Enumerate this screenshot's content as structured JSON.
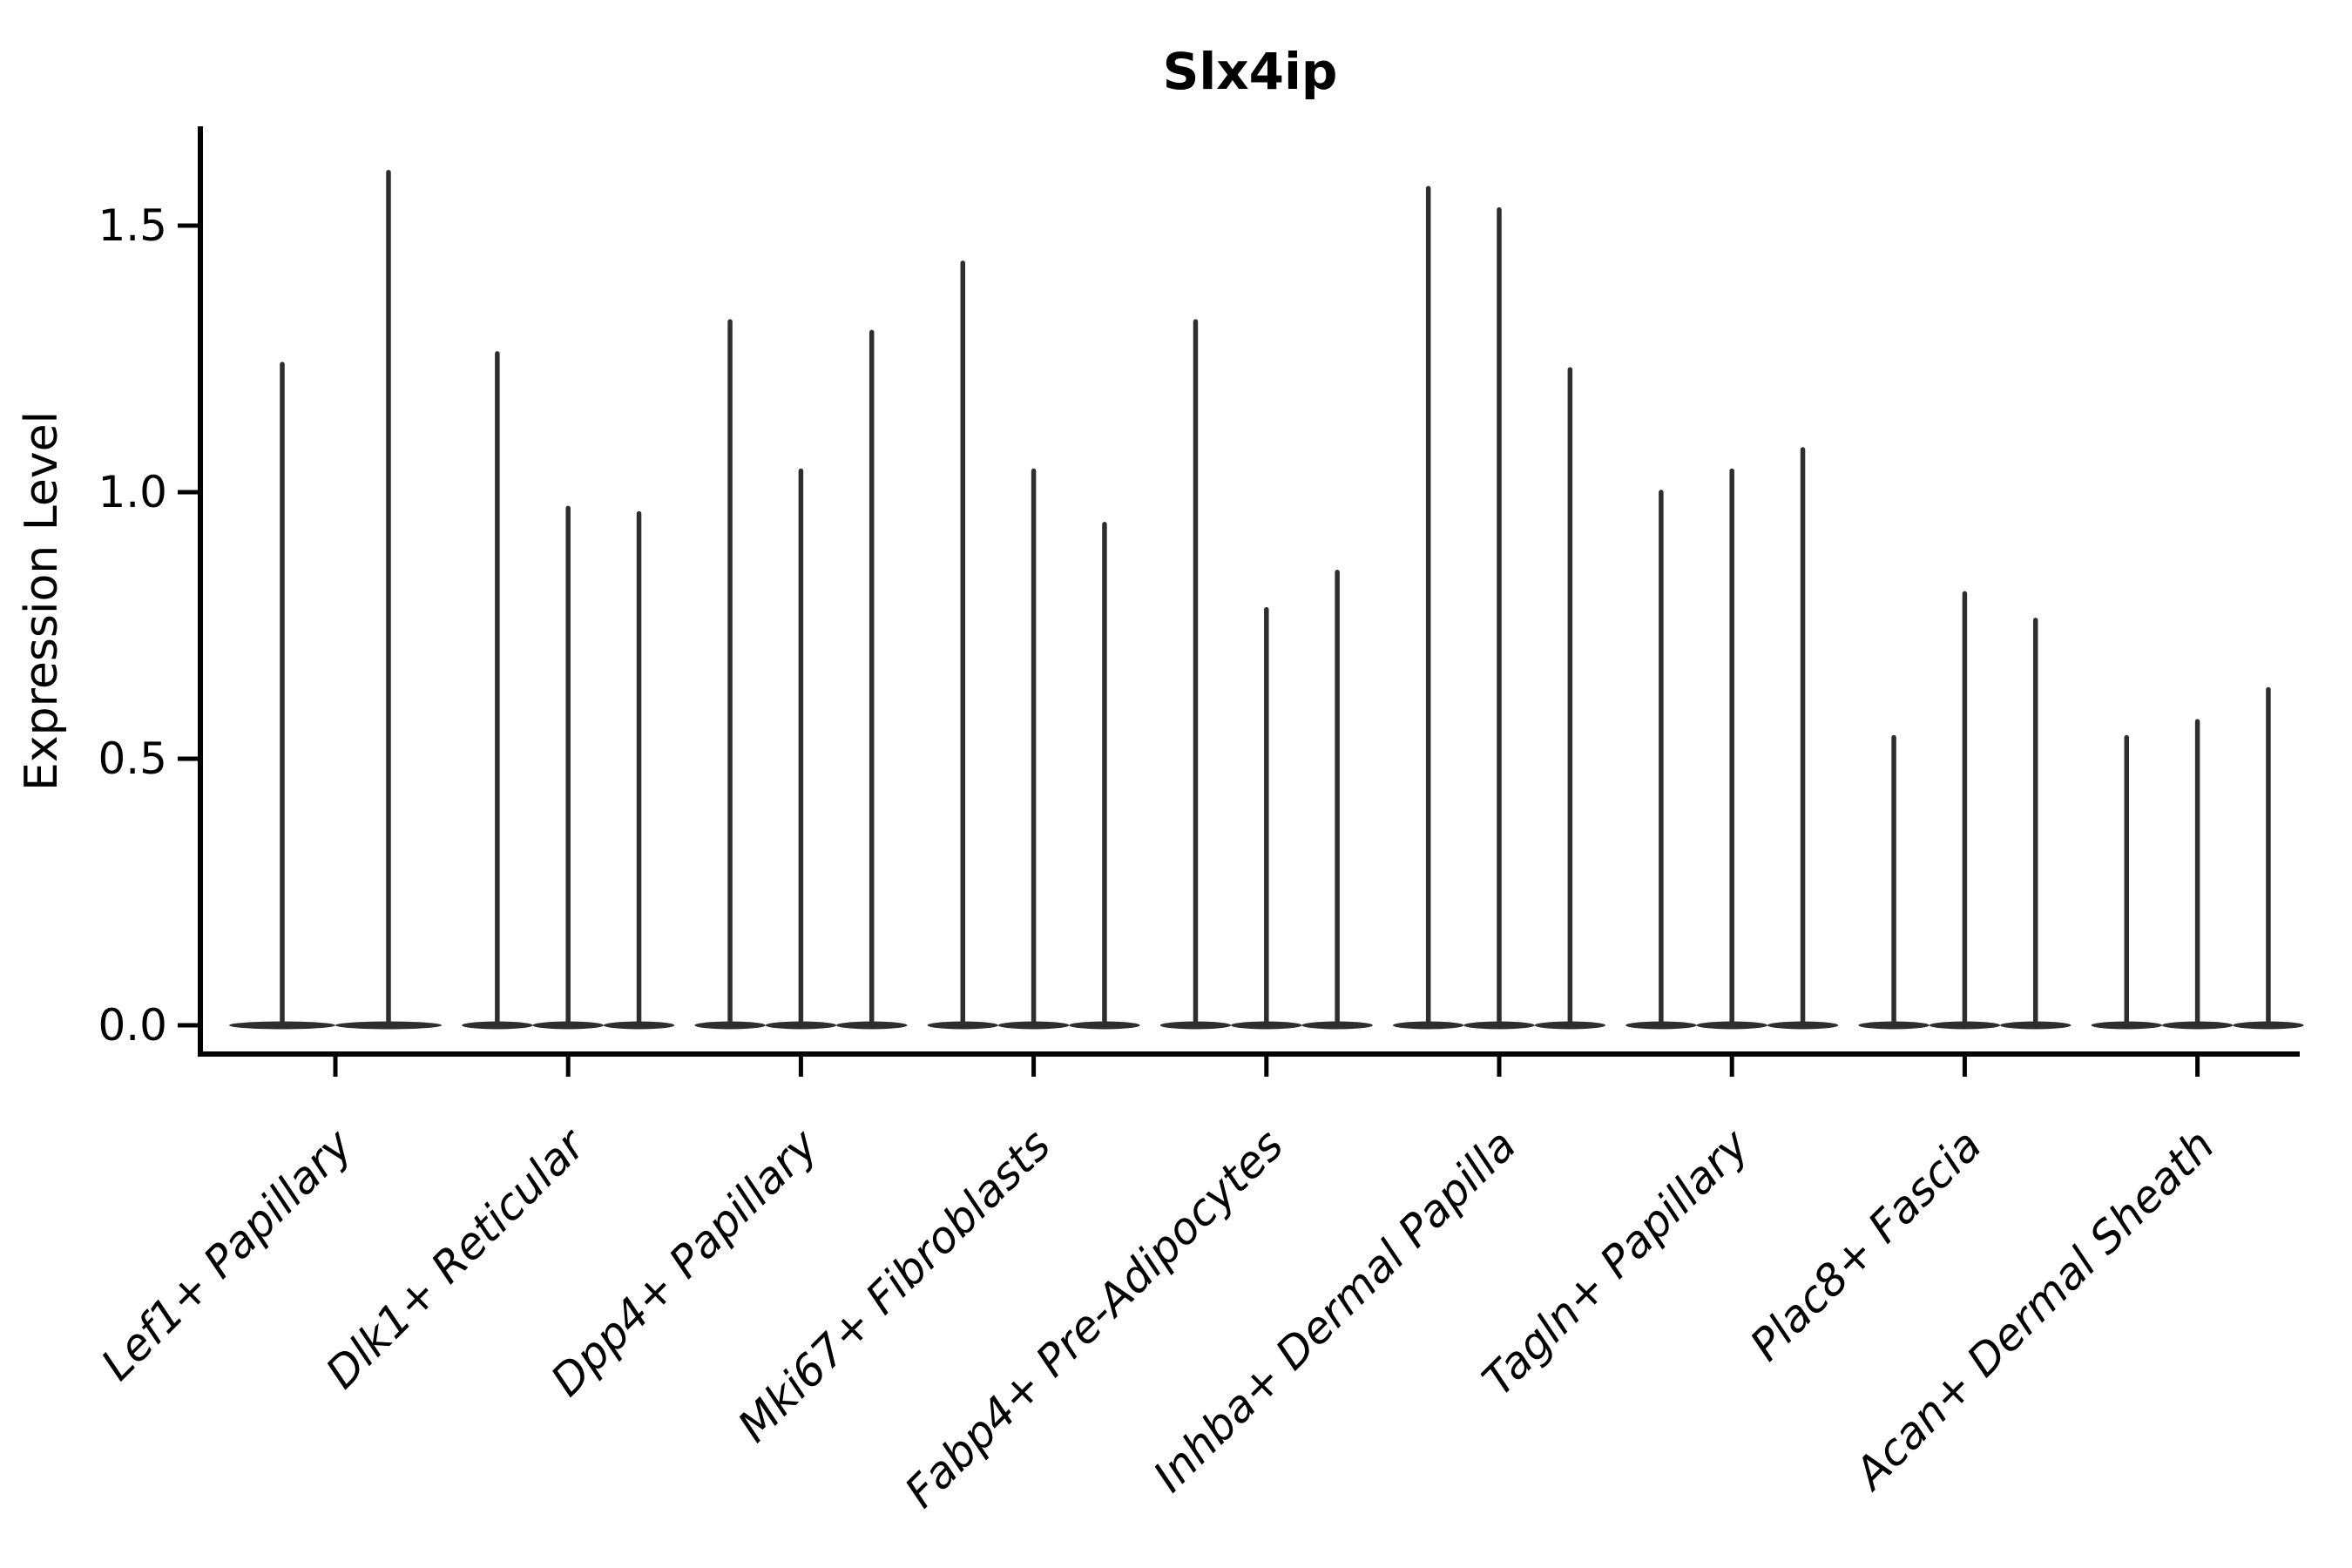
{
  "title": "Slx4ip",
  "y_axis_label": "Expression Level",
  "chart_data": {
    "type": "violin",
    "title": "Slx4ip",
    "xlabel": "",
    "ylabel": "Expression Level",
    "ylim": [
      -0.06,
      1.72
    ],
    "yticks": [
      0.0,
      0.5,
      1.0,
      1.5
    ],
    "ytick_labels": [
      "0.0",
      "0.5",
      "1.0",
      "1.5"
    ],
    "grid": false,
    "legend_position": "none",
    "x_tick_rotation_deg": 45,
    "categories": [
      "Lef1+ Papillary",
      "Dlk1+ Reticular",
      "Dpp4+ Papillary",
      "Mki67+ Fibroblasts",
      "Fabp4+ Pre-Adipocytes",
      "Inhba+ Dermal Papilla",
      "Tagln+ Papillary",
      "Plac8+ Fascia",
      "Acan+ Dermal Sheath"
    ],
    "series": [
      {
        "category": "Lef1+ Papillary",
        "violin_peak_values": [
          1.24,
          1.6
        ],
        "baseline_value": 0.0
      },
      {
        "category": "Dlk1+ Reticular",
        "violin_peak_values": [
          1.26,
          0.97,
          0.96
        ],
        "baseline_value": 0.0
      },
      {
        "category": "Dpp4+ Papillary",
        "violin_peak_values": [
          1.32,
          1.04,
          1.3
        ],
        "baseline_value": 0.0
      },
      {
        "category": "Mki67+ Fibroblasts",
        "violin_peak_values": [
          1.43,
          1.04,
          0.94
        ],
        "baseline_value": 0.0
      },
      {
        "category": "Fabp4+ Pre-Adipocytes",
        "violin_peak_values": [
          1.32,
          0.78,
          0.85
        ],
        "baseline_value": 0.0
      },
      {
        "category": "Inhba+ Dermal Papilla",
        "violin_peak_values": [
          1.57,
          1.53,
          1.23
        ],
        "baseline_value": 0.0
      },
      {
        "category": "Tagln+ Papillary",
        "violin_peak_values": [
          1.0,
          1.04,
          1.08
        ],
        "baseline_value": 0.0
      },
      {
        "category": "Plac8+ Fascia",
        "violin_peak_values": [
          0.54,
          0.81,
          0.76
        ],
        "baseline_value": 0.0
      },
      {
        "category": "Acan+ Dermal Sheath",
        "violin_peak_values": [
          0.54,
          0.57,
          0.63
        ],
        "baseline_value": 0.0
      }
    ]
  },
  "style": {
    "violin_color": "#2e2e2e",
    "axis_color": "#000000",
    "background_color": "#ffffff"
  }
}
